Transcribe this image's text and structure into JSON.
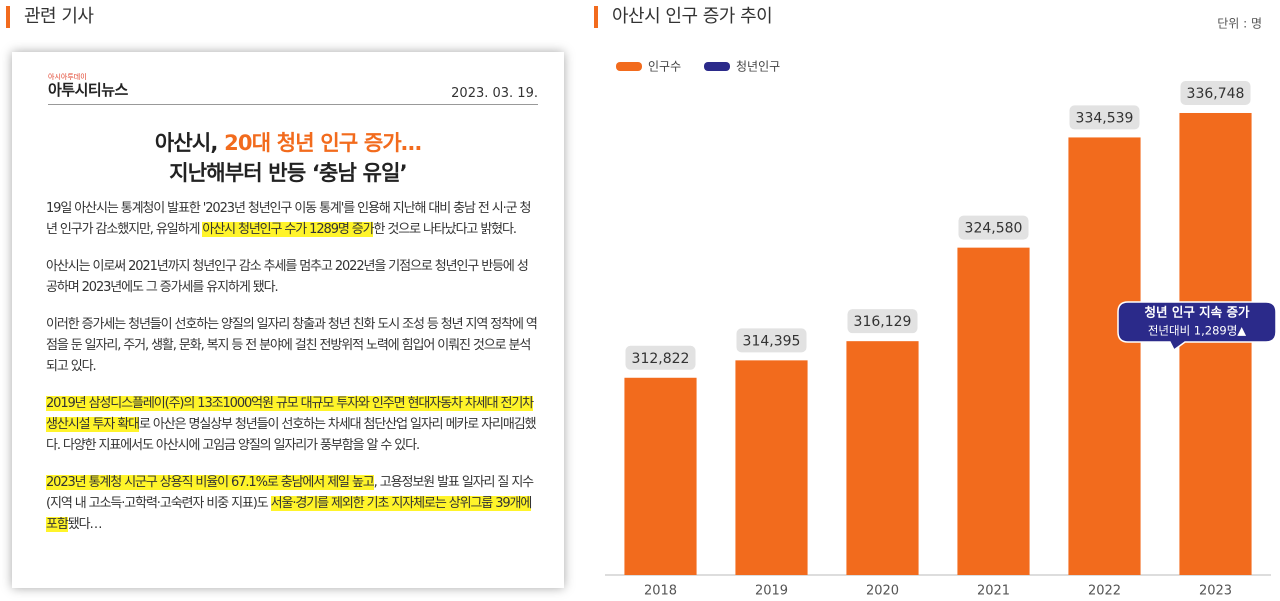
{
  "article_section": {
    "heading": "관련 기사",
    "publisher_small": "아시아투데이",
    "publisher": "아투시티뉴스",
    "date": "2023. 03. 19.",
    "headline_line1": [
      {
        "text": "아산시, "
      },
      {
        "text": "20대 청년 인구 증가…",
        "accent": true
      }
    ],
    "headline_line2": "지난해부터 반등 ‘충남 유일’",
    "paragraphs": [
      [
        {
          "text": "19일 아산시는 통계청이 발표한 '2023년 청년인구 이동 통계'를 인용해 지난해 대비 충남 전 시·군 청년 인구가 감소했지만, 유일하게 "
        },
        {
          "text": "아산시 청년인구 수가 1289명 증가",
          "highlight": true
        },
        {
          "text": "한 것으로 나타났다고 밝혔다."
        }
      ],
      [
        {
          "text": "아산시는 이로써 2021년까지 청년인구 감소 추세를 멈추고 2022년을 기점으로 청년인구 반등에 성공하며 2023년에도 그 증가세를 유지하게 됐다."
        }
      ],
      [
        {
          "text": "이러한 증가세는 청년들이 선호하는 양질의 일자리 창출과 청년 친화 도시 조성 등 청년 지역 정착에 역점을 둔 일자리, 주거, 생활, 문화, 복지 등 전 분야에 걸친 전방위적 노력에 힘입어 이뤄진 것으로 분석되고 있다."
        }
      ],
      [
        {
          "text": "2019년 삼성디스플레이(주)의 13조1000억원 규모 대규모 투자와 인주면 현대자동차 차세대 전기차생산시설 투자 확대",
          "highlight": true
        },
        {
          "text": "로 아산은 명실상부 청년들이 선호하는 차세대 첨단산업 일자리 메카로 자리매김했다. 다양한 지표에서도 아산시에 고임금 양질의 일자리가 풍부함을 알 수 있다."
        }
      ],
      [
        {
          "text": "2023년 통계청 시군구 상용직 비율이 67.1%로 충남에서 제일 높고",
          "highlight": true
        },
        {
          "text": ", 고용정보원 발표 일자리 질 지수(지역 내 고소득·고학력·고숙련자 비중 지표)도 "
        },
        {
          "text": "서울·경기를 제외한 기초 지자체로는 상위그룹 39개에 포함",
          "highlight": true
        },
        {
          "text": "됐다…"
        }
      ]
    ]
  },
  "chart_data": {
    "type": "bar",
    "title": "아산시 인구 증가 추이",
    "unit_note": "단위 : 명",
    "legend": [
      {
        "name": "인구수",
        "color": "#f26b1d"
      },
      {
        "name": "청년인구",
        "color": "#2b2a8a"
      }
    ],
    "categories": [
      "2018",
      "2019",
      "2020",
      "2021",
      "2022",
      "2023"
    ],
    "values": [
      312822,
      314395,
      316129,
      324580,
      334539,
      336748
    ],
    "value_labels": [
      "312,822",
      "314,395",
      "316,129",
      "324,580",
      "334,539",
      "336,748"
    ],
    "color": "#f26b1d",
    "ylim": [
      295000,
      340000
    ],
    "annotation": {
      "line1": "청년 인구 지속 증가",
      "line2": "전년대비 1,289명▲",
      "color": "#2b2a8a"
    }
  }
}
